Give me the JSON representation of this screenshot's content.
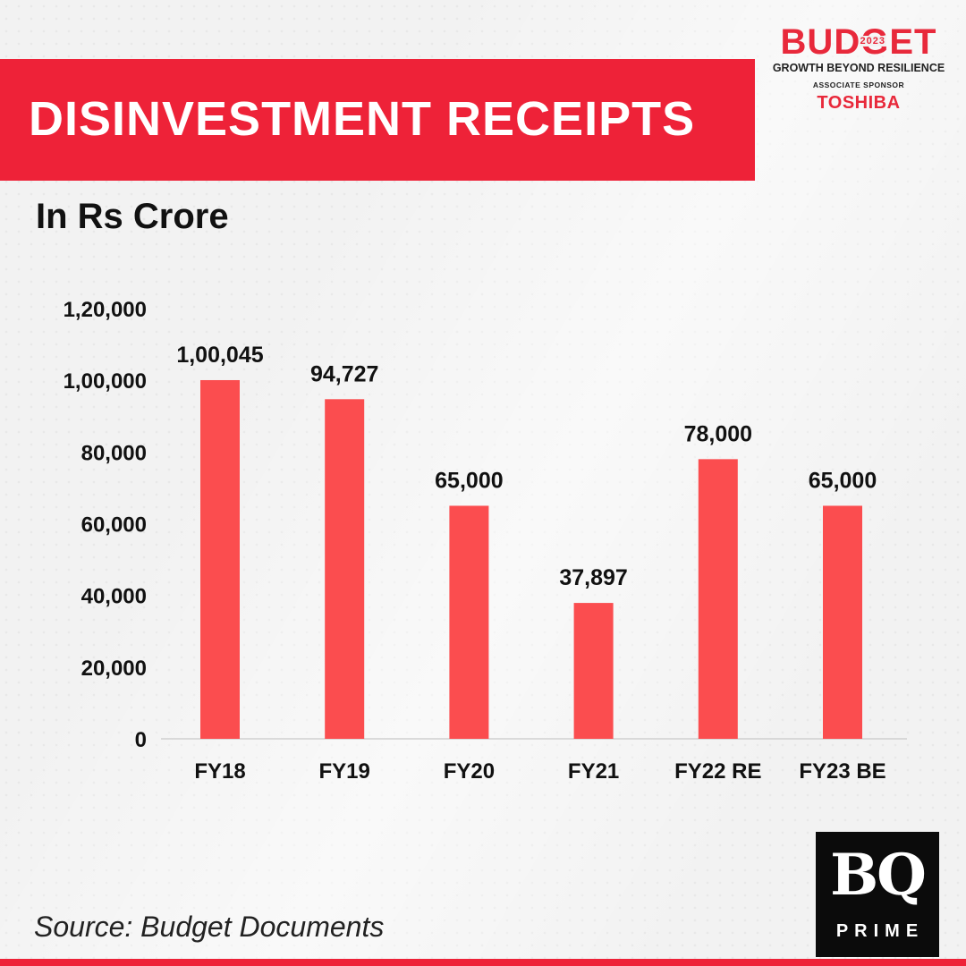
{
  "title": "DISINVESTMENT RECEIPTS",
  "subtitle": "In Rs Crore",
  "source": "Source: Budget Documents",
  "branding": {
    "budget_word": "BUDGET",
    "budget_year": "2023",
    "tagline": "GROWTH BEYOND RESILIENCE",
    "associate_label": "ASSOCIATE SPONSOR",
    "sponsor": "TOSHIBA",
    "publisher_mark": "BQ",
    "publisher_sub": "PRIME"
  },
  "colors": {
    "accent": "#ee2238",
    "bar": "#fb4d4f",
    "text": "#111111"
  },
  "chart_data": {
    "type": "bar",
    "title": "DISINVESTMENT RECEIPTS",
    "subtitle": "In Rs Crore",
    "xlabel": "",
    "ylabel": "",
    "categories": [
      "FY18",
      "FY19",
      "FY20",
      "FY21",
      "FY22 RE",
      "FY23 BE"
    ],
    "values": [
      100045,
      94727,
      65000,
      37897,
      78000,
      65000
    ],
    "value_labels": [
      "1,00,045",
      "94,727",
      "65,000",
      "37,897",
      "78,000",
      "65,000"
    ],
    "ylim": [
      0,
      120000
    ],
    "yticks": [
      0,
      20000,
      40000,
      60000,
      80000,
      100000,
      120000
    ],
    "ytick_labels": [
      "0",
      "20,000",
      "40,000",
      "60,000",
      "80,000",
      "1,00,000",
      "1,20,000"
    ],
    "grid": false,
    "legend": "none"
  }
}
